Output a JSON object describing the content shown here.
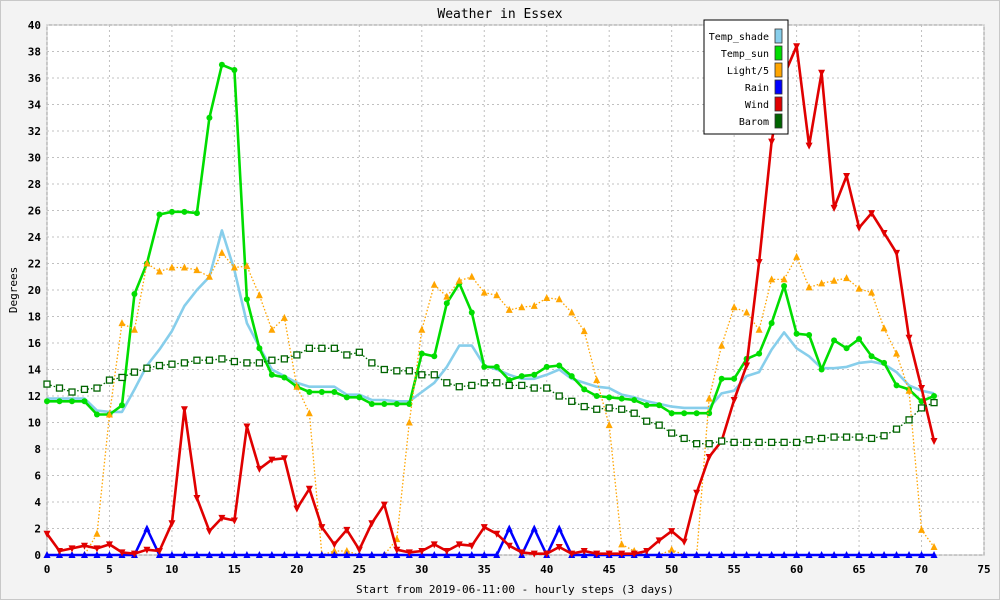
{
  "chart_data": {
    "type": "line",
    "title": "Weather in Essex",
    "xlabel": "Start from 2019-06-11:00 - hourly steps (3 days)",
    "ylabel": "Degrees",
    "xlim": [
      0,
      75
    ],
    "ylim": [
      0,
      40
    ],
    "x_ticks": [
      0,
      5,
      10,
      15,
      20,
      25,
      30,
      35,
      40,
      45,
      50,
      55,
      60,
      65,
      70,
      75
    ],
    "y_ticks": [
      0,
      2,
      4,
      6,
      8,
      10,
      12,
      14,
      16,
      18,
      20,
      22,
      24,
      26,
      28,
      30,
      32,
      34,
      36,
      38,
      40
    ],
    "grid": true,
    "legend_position": "top-right",
    "colors": {
      "background": "#f3f3f3",
      "plot_area": "#ffffff",
      "grid": "#c0c0c0",
      "frame": "#c8c8c8"
    },
    "series": [
      {
        "name": "Temp_shade",
        "color": "#87ceeb",
        "marker": "none",
        "line": "solid",
        "values": [
          11.8,
          11.8,
          11.8,
          11.8,
          10.9,
          10.8,
          10.8,
          12.5,
          14.3,
          15.5,
          16.9,
          18.8,
          20.0,
          21.0,
          24.5,
          21.5,
          17.5,
          15.7,
          14.0,
          13.5,
          13.0,
          12.7,
          12.7,
          12.7,
          12.1,
          12.1,
          11.7,
          11.7,
          11.6,
          11.6,
          12.3,
          13.0,
          14.2,
          15.8,
          15.8,
          14.3,
          14.0,
          13.6,
          13.3,
          13.3,
          13.6,
          14.0,
          13.3,
          13.0,
          12.7,
          12.6,
          12.1,
          11.9,
          11.6,
          11.4,
          11.2,
          11.1,
          11.1,
          11.1,
          12.2,
          12.4,
          13.5,
          13.8,
          15.5,
          16.8,
          15.6,
          15.0,
          14.1,
          14.1,
          14.2,
          14.5,
          14.6,
          14.4,
          13.8,
          12.8,
          12.4,
          12.2
        ]
      },
      {
        "name": "Temp_sun",
        "color": "#00dd00",
        "marker": "circle",
        "line": "solid",
        "values": [
          11.6,
          11.6,
          11.6,
          11.6,
          10.6,
          10.6,
          11.3,
          19.7,
          22.0,
          25.7,
          25.9,
          25.9,
          25.8,
          33.0,
          37.0,
          36.6,
          19.3,
          15.6,
          13.6,
          13.4,
          12.7,
          12.3,
          12.3,
          12.3,
          11.9,
          11.9,
          11.4,
          11.4,
          11.4,
          11.4,
          15.2,
          15.0,
          19.0,
          20.5,
          18.3,
          14.2,
          14.2,
          13.2,
          13.5,
          13.6,
          14.2,
          14.3,
          13.5,
          12.5,
          12.0,
          11.9,
          11.8,
          11.7,
          11.3,
          11.3,
          10.7,
          10.7,
          10.7,
          10.7,
          13.3,
          13.3,
          14.8,
          15.2,
          17.5,
          20.3,
          16.7,
          16.6,
          14.0,
          16.2,
          15.6,
          16.3,
          15.0,
          14.5,
          12.8,
          12.5,
          11.6,
          12.0
        ]
      },
      {
        "name": "Light/5",
        "color": "#ffa500",
        "marker": "triangle-up",
        "line": "dotted",
        "values": [
          0,
          0,
          0,
          0,
          1.6,
          10.6,
          17.5,
          17.0,
          22.0,
          21.4,
          21.7,
          21.7,
          21.5,
          21.0,
          22.8,
          21.7,
          21.8,
          19.6,
          17.0,
          17.9,
          12.7,
          10.7,
          0,
          0.3,
          0.3,
          0,
          0,
          0,
          1.2,
          10.0,
          17.0,
          20.4,
          19.5,
          20.7,
          21.0,
          19.8,
          19.6,
          18.5,
          18.7,
          18.8,
          19.4,
          19.3,
          18.3,
          16.9,
          13.2,
          9.8,
          0.8,
          0.3,
          0,
          0,
          0.4,
          0,
          0,
          11.8,
          15.8,
          18.7,
          18.3,
          17.0,
          20.8,
          20.8,
          22.5,
          20.2,
          20.5,
          20.7,
          20.9,
          20.1,
          19.8,
          17.1,
          15.2,
          12.4,
          1.9,
          0.6
        ]
      },
      {
        "name": "Rain",
        "color": "#0000ff",
        "marker": "triangle-up",
        "line": "solid",
        "values": [
          0,
          0,
          0,
          0,
          0,
          0,
          0,
          0,
          2.0,
          0,
          0,
          0,
          0,
          0,
          0,
          0,
          0,
          0,
          0,
          0,
          0,
          0,
          0,
          0,
          0,
          0,
          0,
          0,
          0,
          0,
          0,
          0,
          0,
          0,
          0,
          0,
          0,
          2.0,
          0,
          2.0,
          0,
          2.0,
          0,
          0,
          0,
          0,
          0,
          0,
          0,
          0,
          0,
          0,
          0,
          0,
          0,
          0,
          0,
          0,
          0,
          0,
          0,
          0,
          0,
          0,
          0,
          0,
          0,
          0,
          0,
          0,
          0,
          0
        ]
      },
      {
        "name": "Wind",
        "color": "#e00000",
        "marker": "triangle-down",
        "line": "solid",
        "values": [
          1.6,
          0.3,
          0.5,
          0.7,
          0.5,
          0.8,
          0.2,
          0.1,
          0.4,
          0.3,
          2.4,
          11.0,
          4.3,
          1.8,
          2.8,
          2.6,
          9.7,
          6.5,
          7.2,
          7.3,
          3.5,
          5.0,
          2.1,
          0.8,
          1.9,
          0.4,
          2.4,
          3.8,
          0.4,
          0.2,
          0.3,
          0.8,
          0.3,
          0.8,
          0.7,
          2.1,
          1.6,
          0.7,
          0.2,
          0.1,
          0.1,
          0.6,
          0.1,
          0.3,
          0.1,
          0.1,
          0.1,
          0.1,
          0.3,
          1.1,
          1.8,
          1.0,
          4.7,
          7.4,
          8.6,
          11.7,
          14.3,
          22.1,
          31.2,
          36.2,
          38.4,
          30.9,
          36.4,
          26.2,
          28.6,
          24.7,
          25.8,
          24.3,
          22.8,
          16.4,
          12.6,
          8.6
        ]
      },
      {
        "name": "Barom",
        "color": "#006400",
        "marker": "square",
        "line": "dotted",
        "values": [
          12.9,
          12.6,
          12.3,
          12.5,
          12.6,
          13.2,
          13.4,
          13.8,
          14.1,
          14.3,
          14.4,
          14.5,
          14.7,
          14.7,
          14.8,
          14.6,
          14.5,
          14.5,
          14.7,
          14.8,
          15.1,
          15.6,
          15.6,
          15.6,
          15.1,
          15.3,
          14.5,
          14.0,
          13.9,
          13.9,
          13.6,
          13.6,
          13.0,
          12.7,
          12.8,
          13.0,
          13.0,
          12.8,
          12.8,
          12.6,
          12.6,
          12.0,
          11.6,
          11.2,
          11.0,
          11.1,
          11.0,
          10.7,
          10.1,
          9.8,
          9.2,
          8.8,
          8.4,
          8.4,
          8.6,
          8.5,
          8.5,
          8.5,
          8.5,
          8.5,
          8.5,
          8.7,
          8.8,
          8.9,
          8.9,
          8.9,
          8.8,
          9.0,
          9.5,
          10.2,
          11.1,
          11.5
        ]
      }
    ]
  }
}
